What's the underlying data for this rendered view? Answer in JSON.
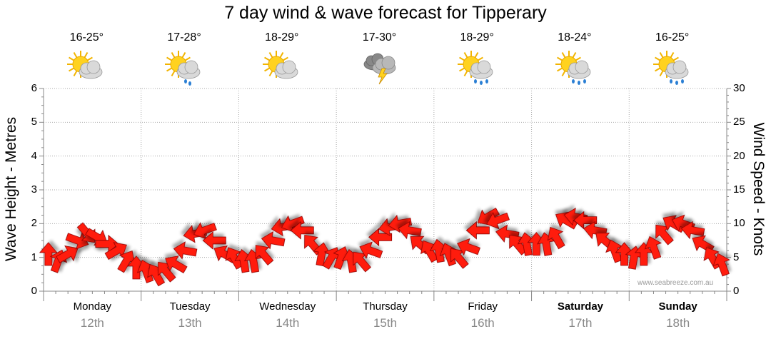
{
  "chart_data": {
    "type": "line",
    "title": "7 day wind & wave forecast for Tipperary",
    "ylabel_left": "Wave Height - Metres",
    "ylabel_right": "Wind Speed - Knots",
    "ylim_left": [
      0,
      6
    ],
    "ylim_right": [
      0,
      30
    ],
    "yticks_left": [
      "0",
      "1",
      "2",
      "3",
      "4",
      "5",
      "6"
    ],
    "yticks_right": [
      "0",
      "5",
      "10",
      "15",
      "20",
      "25",
      "30"
    ],
    "grid": true,
    "days": [
      {
        "name": "Monday",
        "date": "12th",
        "temp": "16-25°",
        "icon": "sun-cloud-icon",
        "bold": false
      },
      {
        "name": "Tuesday",
        "date": "13th",
        "temp": "17-28°",
        "icon": "sun-cloud-drizzle-icon",
        "bold": false
      },
      {
        "name": "Wednesday",
        "date": "14th",
        "temp": "18-29°",
        "icon": "sun-cloud-icon",
        "bold": false
      },
      {
        "name": "Thursday",
        "date": "15th",
        "temp": "17-30°",
        "icon": "storm-icon",
        "bold": false
      },
      {
        "name": "Friday",
        "date": "16th",
        "temp": "18-29°",
        "icon": "sun-cloud-showers-icon",
        "bold": false
      },
      {
        "name": "Saturday",
        "date": "17th",
        "temp": "18-24°",
        "icon": "sun-cloud-showers-icon",
        "bold": true
      },
      {
        "name": "Sunday",
        "date": "18th",
        "temp": "16-25°",
        "icon": "sun-cloud-showers-icon",
        "bold": true
      }
    ],
    "series": [
      {
        "type": "arrows",
        "axis": "right",
        "x_day": [
          0.05,
          0.15,
          0.25,
          0.35,
          0.45,
          0.55,
          0.65,
          0.75,
          0.85,
          0.95,
          1.05,
          1.15,
          1.25,
          1.35,
          1.45,
          1.55,
          1.65,
          1.75,
          1.85,
          1.95,
          2.05,
          2.15,
          2.25,
          2.35,
          2.45,
          2.55,
          2.65,
          2.75,
          2.85,
          2.95,
          3.05,
          3.15,
          3.25,
          3.35,
          3.45,
          3.55,
          3.65,
          3.75,
          3.85,
          3.95,
          4.05,
          4.15,
          4.25,
          4.35,
          4.45,
          4.55,
          4.65,
          4.75,
          4.85,
          4.95,
          5.05,
          5.15,
          5.25,
          5.35,
          5.45,
          5.55,
          5.65,
          5.75,
          5.85,
          5.95,
          6.05,
          6.15,
          6.25,
          6.35,
          6.45,
          6.55,
          6.65,
          6.75,
          6.85,
          6.95
        ],
        "wind_knots": [
          5.5,
          4.5,
          5.5,
          7.5,
          8.5,
          8,
          7,
          6,
          4.5,
          3.5,
          3,
          2.5,
          3,
          4,
          6,
          8.5,
          9,
          7.5,
          5.5,
          5,
          4.5,
          4.5,
          5.5,
          7.5,
          9.5,
          10,
          9,
          7,
          5.5,
          5,
          5,
          4.5,
          4.5,
          6,
          8,
          9.5,
          10,
          9,
          7,
          6,
          6,
          5.5,
          5,
          6.5,
          9,
          11,
          10.5,
          8.5,
          7,
          7,
          7,
          7,
          8,
          10.5,
          11,
          10.5,
          9,
          7.5,
          6,
          5.5,
          5,
          5.5,
          6.5,
          8.5,
          10,
          10,
          9,
          7,
          5,
          4
        ],
        "direction_deg": [
          180,
          200,
          240,
          290,
          320,
          300,
          270,
          240,
          210,
          180,
          160,
          150,
          140,
          120,
          100,
          80,
          70,
          90,
          120,
          150,
          170,
          170,
          140,
          100,
          80,
          70,
          90,
          140,
          190,
          210,
          200,
          170,
          140,
          110,
          90,
          80,
          80,
          100,
          130,
          150,
          170,
          160,
          140,
          110,
          90,
          60,
          70,
          100,
          140,
          170,
          180,
          170,
          150,
          120,
          100,
          90,
          100,
          130,
          160,
          180,
          190,
          180,
          160,
          140,
          120,
          110,
          100,
          120,
          150,
          160
        ]
      }
    ],
    "credit": "www.seabreeze.com.au"
  }
}
